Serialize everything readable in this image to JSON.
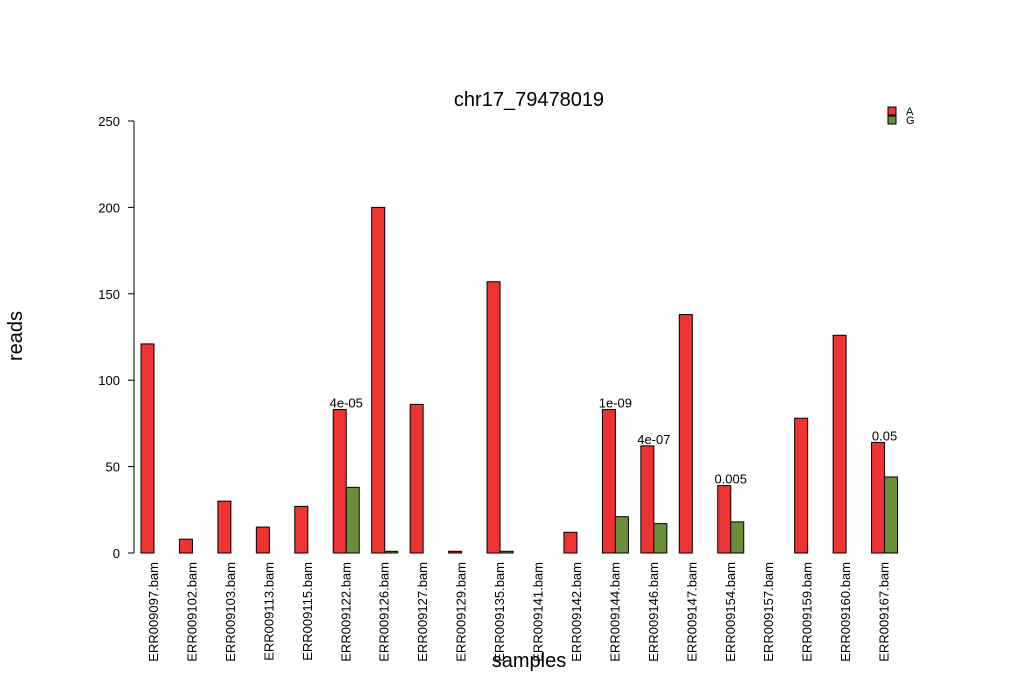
{
  "chart_data": {
    "type": "bar",
    "title": "chr17_79478019",
    "xlabel": "samples",
    "ylabel": "reads",
    "ylim": [
      0,
      250
    ],
    "yticks": [
      0,
      50,
      100,
      150,
      200,
      250
    ],
    "grid": false,
    "legend_position": "top-right",
    "categories": [
      "ERR009097.bam",
      "ERR009102.bam",
      "ERR009103.bam",
      "ERR009113.bam",
      "ERR009115.bam",
      "ERR009122.bam",
      "ERR009126.bam",
      "ERR009127.bam",
      "ERR009129.bam",
      "ERR009135.bam",
      "ERR009141.bam",
      "ERR009142.bam",
      "ERR009144.bam",
      "ERR009146.bam",
      "ERR009147.bam",
      "ERR009154.bam",
      "ERR009157.bam",
      "ERR009159.bam",
      "ERR009160.bam",
      "ERR009167.bam"
    ],
    "series": [
      {
        "name": "A",
        "color": "#ee3333",
        "values": [
          121,
          8,
          30,
          15,
          27,
          83,
          200,
          86,
          1,
          157,
          0,
          12,
          83,
          62,
          138,
          39,
          0,
          78,
          126,
          64
        ]
      },
      {
        "name": "G",
        "color": "#6b8e3a",
        "values": [
          0,
          0,
          0,
          0,
          0,
          38,
          1,
          0,
          0,
          1,
          0,
          0,
          21,
          17,
          0,
          18,
          0,
          0,
          0,
          44
        ]
      }
    ],
    "annotations": [
      {
        "category_index": 5,
        "text": "4e-05",
        "y": 83
      },
      {
        "category_index": 12,
        "text": "1e-09",
        "y": 83
      },
      {
        "category_index": 13,
        "text": "4e-07",
        "y": 62
      },
      {
        "category_index": 15,
        "text": "0.005",
        "y": 39
      },
      {
        "category_index": 19,
        "text": "0.05",
        "y": 64
      }
    ]
  }
}
